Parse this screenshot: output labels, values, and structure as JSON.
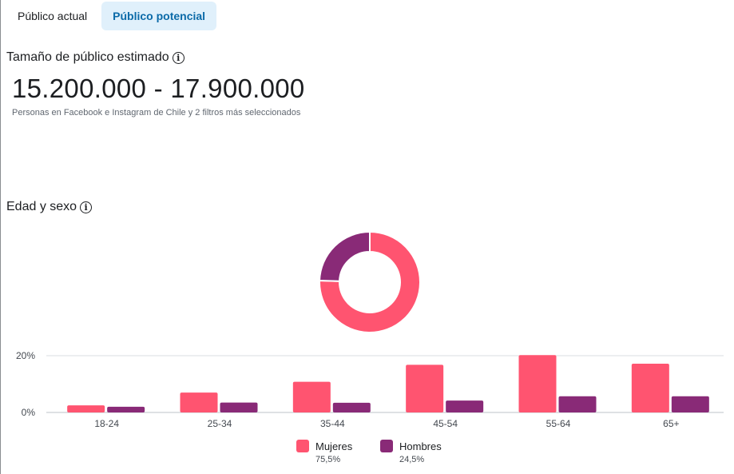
{
  "tabs": [
    {
      "label": "Público actual",
      "active": false
    },
    {
      "label": "Público potencial",
      "active": true
    }
  ],
  "audience": {
    "title": "Tamaño de público estimado",
    "range": "15.200.000 - 17.900.000",
    "description": "Personas en Facebook e Instagram de Chile y 2 filtros más seleccionados"
  },
  "age_gender": {
    "title": "Edad y sexo"
  },
  "colors": {
    "women": "#ff5470",
    "men": "#892a77",
    "tab_active_bg": "#e0f0fb",
    "tab_active_text": "#0b6aa8"
  },
  "legend": [
    {
      "name": "Mujeres",
      "pct": "75,5%"
    },
    {
      "name": "Hombres",
      "pct": "24,5%"
    }
  ],
  "chart_data": [
    {
      "type": "pie",
      "series": [
        {
          "name": "Mujeres",
          "value": 75.5
        },
        {
          "name": "Hombres",
          "value": 24.5
        }
      ]
    },
    {
      "type": "bar",
      "categories": [
        "18-24",
        "25-34",
        "35-44",
        "45-54",
        "55-64",
        "65+"
      ],
      "series": [
        {
          "name": "Mujeres",
          "values": [
            2.5,
            7,
            10.8,
            16.8,
            20.2,
            17.2
          ]
        },
        {
          "name": "Hombres",
          "values": [
            2,
            3.5,
            3.4,
            4.2,
            5.7,
            5.7
          ]
        }
      ],
      "yticks": [
        "20%",
        "0%"
      ],
      "ylim": [
        0,
        20
      ],
      "grid": true
    }
  ]
}
